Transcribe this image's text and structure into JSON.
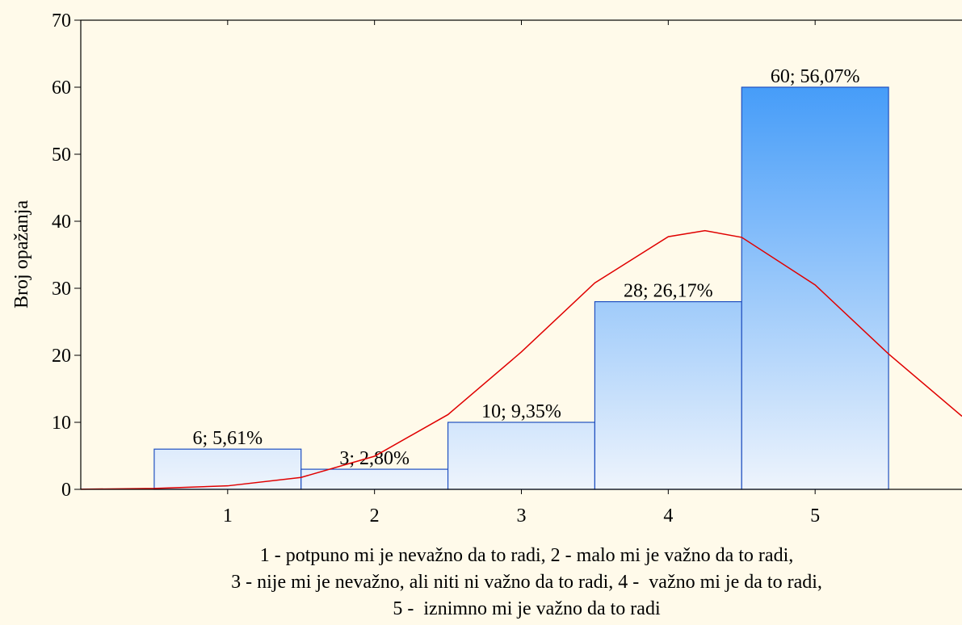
{
  "chart_data": {
    "type": "histogram",
    "ylabel": "Broj opažanja",
    "xlabel_lines": [
      "1 - potpuno mi je nevažno da to radi, 2 - malo mi je važno da to radi,",
      "3 - nije mi je nevažno, ali niti ni važno da to radi, 4 -  važno mi je da to radi,",
      "5 -  iznimno mi je važno da to radi"
    ],
    "bins": [
      0.5,
      1.5,
      2.5,
      3.5,
      4.5,
      5.5
    ],
    "values": [
      6,
      3,
      10,
      28,
      60
    ],
    "value_labels": [
      "6; 5,61%",
      "3; 2,80%",
      "10; 9,35%",
      "28; 26,17%",
      "60; 56,07%"
    ],
    "color": "#2a8ef8",
    "xlim": [
      0,
      6
    ],
    "xticks": [
      1,
      2,
      3,
      4,
      5
    ],
    "ylim": [
      0,
      70
    ],
    "yticks": [
      0,
      10,
      20,
      30,
      40,
      50,
      60,
      70
    ],
    "fit": {
      "color": "#e00000",
      "x": [
        0,
        0.5,
        1,
        1.5,
        2,
        2.5,
        3,
        3.5,
        4,
        4.25,
        4.5,
        5,
        5.5,
        6
      ],
      "values": [
        0.02,
        0.13,
        0.52,
        1.78,
        4.94,
        11.15,
        20.5,
        30.8,
        37.7,
        38.6,
        37.6,
        30.5,
        20.2,
        10.9
      ]
    }
  }
}
